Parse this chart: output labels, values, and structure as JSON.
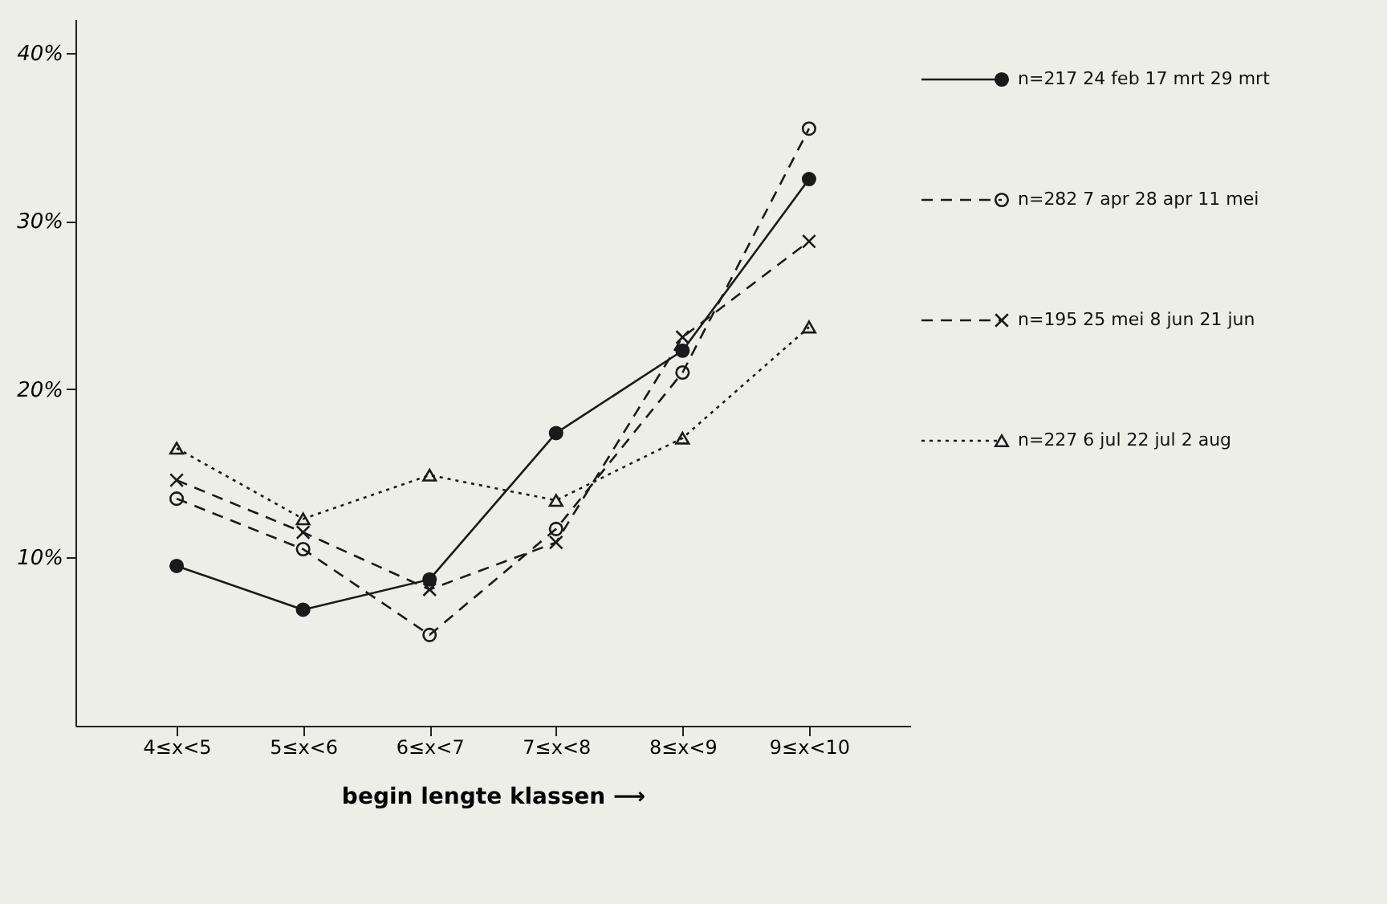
{
  "chart_data": {
    "type": "line",
    "xlabel": "begin lengte klassen ⟶",
    "categories": [
      "4≤x<5",
      "5≤x<6",
      "6≤x<7",
      "7≤x<8",
      "8≤x<9",
      "9≤x<10"
    ],
    "ylim": [
      0,
      42
    ],
    "yticks": [
      {
        "value": 10,
        "label": "10%"
      },
      {
        "value": 20,
        "label": "20%"
      },
      {
        "value": 30,
        "label": "30%"
      },
      {
        "value": 40,
        "label": "40%"
      }
    ],
    "grid": false,
    "legend": "right",
    "series": [
      {
        "name": "n=217 24 feb 17 mrt 29 mrt",
        "color": "#1a1a1a",
        "marker": "circle",
        "line_style": "solid",
        "values": [
          9.5,
          6.9,
          8.7,
          17.4,
          22.3,
          32.5
        ]
      },
      {
        "name": "n=282 7 apr 28 apr 11 mei",
        "color": "#1a1a1a",
        "marker": "circle",
        "line_style": "dashed",
        "values": [
          13.5,
          10.5,
          5.4,
          11.7,
          21.0,
          35.5
        ]
      },
      {
        "name": "n=195 25 mei 8 jun 21 jun",
        "color": "#1a1a1a",
        "marker": "cross",
        "line_style": "dashed",
        "values": [
          14.6,
          11.5,
          8.1,
          10.9,
          23.1,
          28.8
        ]
      },
      {
        "name": "n=227 6 jul 22 jul 2 aug",
        "color": "#1a1a1a",
        "marker": "triangle",
        "line_style": "dotted",
        "values": [
          16.5,
          12.3,
          14.9,
          13.4,
          17.1,
          23.7
        ]
      }
    ]
  }
}
